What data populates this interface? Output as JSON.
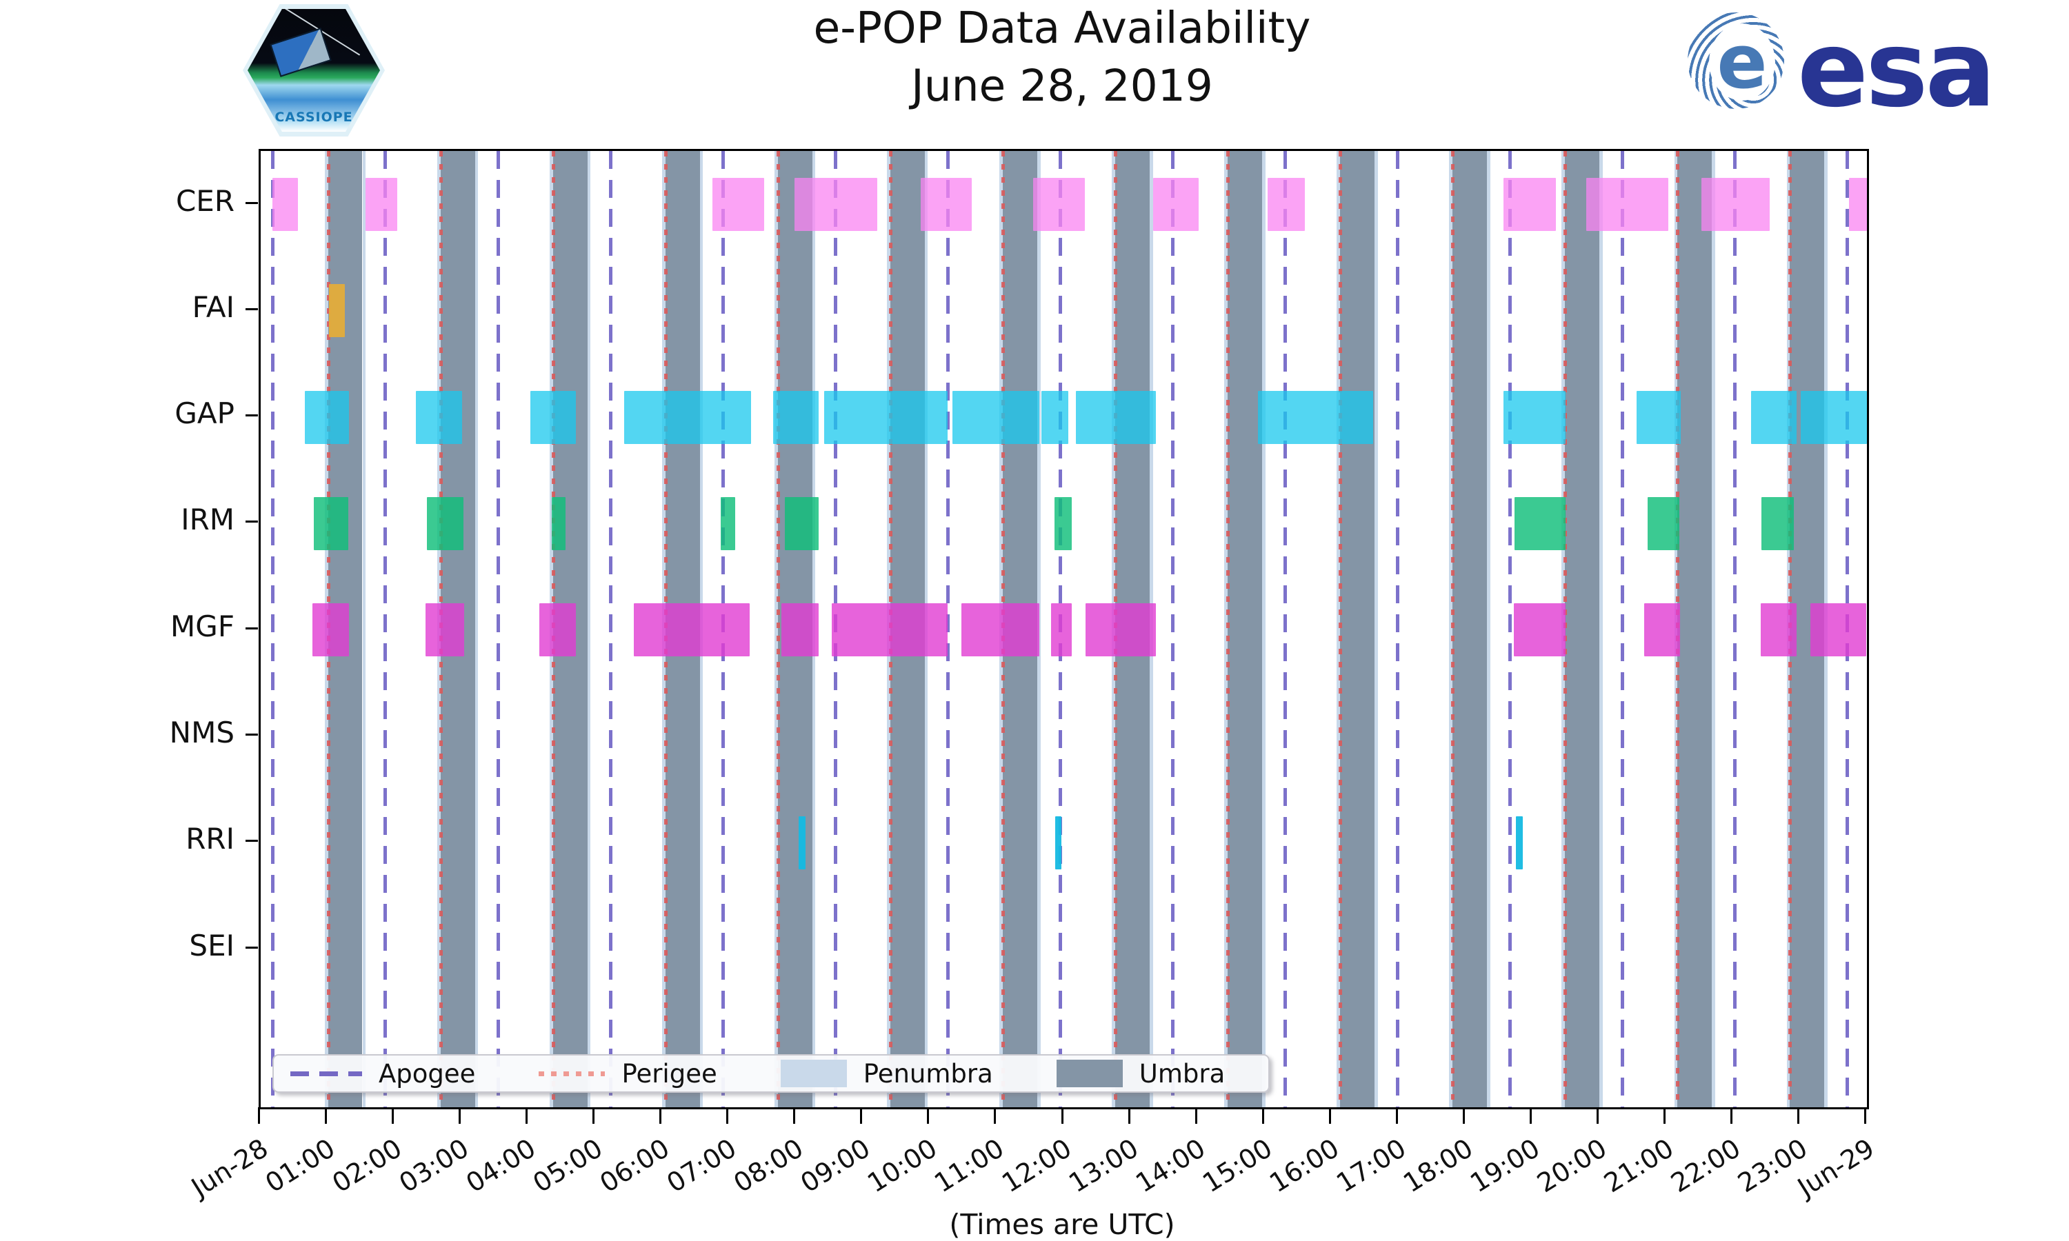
{
  "header": {
    "title_line1": "e-POP Data Availability",
    "title_line2": "June 28, 2019",
    "patch_label": "CASSIOPE",
    "esa_wordmark": "esa",
    "esa_color": "#283593"
  },
  "footer_note": "(Times are UTC)",
  "legend": {
    "apogee_label": "Apogee",
    "perigee_label": "Perigee",
    "penumbra_label": "Penumbra",
    "umbra_label": "Umbra"
  },
  "chart_data": {
    "type": "broken-bar-timeline",
    "title": "e-POP Data Availability June 28, 2019",
    "xlabel": "(Times are UTC)",
    "x_range_hours": [
      0,
      24
    ],
    "x_tick_labels": [
      "Jun-28",
      "01:00",
      "02:00",
      "03:00",
      "04:00",
      "05:00",
      "06:00",
      "07:00",
      "08:00",
      "09:00",
      "10:00",
      "11:00",
      "12:00",
      "13:00",
      "14:00",
      "15:00",
      "16:00",
      "17:00",
      "18:00",
      "19:00",
      "20:00",
      "21:00",
      "22:00",
      "23:00",
      "Jun-29"
    ],
    "rows": [
      "CER",
      "FAI",
      "GAP",
      "IRM",
      "MGF",
      "NMS",
      "RRI",
      "SEI"
    ],
    "apogee_times_h": [
      0.18,
      1.86,
      3.54,
      5.22,
      6.9,
      8.58,
      10.26,
      11.94,
      13.62,
      15.3,
      16.98,
      18.66,
      20.34,
      22.02,
      23.7
    ],
    "perigee_times_h": [
      1.01,
      2.69,
      4.37,
      6.05,
      7.73,
      9.41,
      11.09,
      12.77,
      14.45,
      16.13,
      17.81,
      19.49,
      21.17,
      22.85
    ],
    "umbra_duration_h": 0.51,
    "penumbra_width_h": 0.05,
    "colors": {
      "umbra": "#8495a6",
      "penumbra": "#c9d9ea",
      "apogee_line": "rgba(92,78,190,0.8)",
      "perigee_line": "rgba(219,90,90,0.9)",
      "CER": "rgba(249,132,241,0.75)",
      "FAI": "rgba(230,172,55,0.92)",
      "GAP": "rgba(25,200,238,0.75)",
      "IRM": "rgba(16,190,122,0.82)",
      "MGF": "rgba(225,60,210,0.8)",
      "NMS": "rgba(120,120,120,0.8)",
      "RRI": "rgba(20,185,225,0.95)",
      "SEI": "rgba(120,120,120,0.8)"
    },
    "intervals_h": {
      "CER": [
        [
          0.18,
          0.56
        ],
        [
          1.57,
          2.04
        ],
        [
          6.75,
          7.52
        ],
        [
          7.98,
          9.21
        ],
        [
          9.86,
          10.62
        ],
        [
          11.54,
          12.31
        ],
        [
          13.33,
          14.01
        ],
        [
          15.04,
          15.6
        ],
        [
          18.57,
          19.35
        ],
        [
          19.81,
          21.03
        ],
        [
          21.53,
          22.55
        ],
        [
          23.73,
          24.0
        ]
      ],
      "FAI": [
        [
          1.02,
          1.26
        ]
      ],
      "GAP": [
        [
          0.66,
          1.32
        ],
        [
          2.32,
          3.01
        ],
        [
          4.03,
          4.71
        ],
        [
          5.43,
          7.33
        ],
        [
          7.66,
          8.34
        ],
        [
          8.42,
          10.26
        ],
        [
          10.34,
          11.63
        ],
        [
          11.67,
          12.07
        ],
        [
          12.18,
          13.38
        ],
        [
          14.9,
          16.62
        ],
        [
          18.57,
          19.5
        ],
        [
          20.56,
          21.22
        ],
        [
          22.27,
          22.95
        ],
        [
          23.01,
          24.0
        ]
      ],
      "IRM": [
        [
          0.79,
          1.31
        ],
        [
          2.48,
          3.03
        ],
        [
          4.35,
          4.55
        ],
        [
          6.87,
          7.09
        ],
        [
          7.83,
          8.34
        ],
        [
          11.86,
          12.12
        ],
        [
          18.73,
          19.5
        ],
        [
          20.72,
          21.2
        ],
        [
          22.42,
          22.91
        ]
      ],
      "MGF": [
        [
          0.77,
          1.32
        ],
        [
          2.46,
          3.04
        ],
        [
          4.16,
          4.71
        ],
        [
          5.57,
          7.31
        ],
        [
          7.78,
          8.34
        ],
        [
          8.53,
          10.26
        ],
        [
          10.47,
          11.63
        ],
        [
          11.81,
          12.12
        ],
        [
          12.32,
          13.38
        ],
        [
          18.72,
          19.5
        ],
        [
          20.67,
          21.21
        ],
        [
          22.41,
          22.95
        ],
        [
          23.16,
          23.99
        ]
      ],
      "NMS": [],
      "RRI": [
        [
          8.04,
          8.14
        ],
        [
          11.87,
          11.96
        ],
        [
          18.75,
          18.86
        ]
      ],
      "SEI": []
    }
  }
}
